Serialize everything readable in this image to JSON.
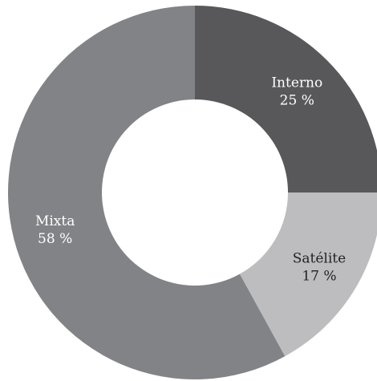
{
  "chart_data": {
    "type": "pie",
    "donut": true,
    "slices": [
      {
        "label": "Interno",
        "value": 25,
        "value_label": "25 %",
        "color": "#58585a",
        "label_color": "#ffffff"
      },
      {
        "label": "Satélite",
        "value": 17,
        "value_label": "17 %",
        "color": "#bdbdbf",
        "label_color": "#222222"
      },
      {
        "label": "Mixta",
        "value": 58,
        "value_label": "58 %",
        "color": "#828386",
        "label_color": "#ffffff"
      }
    ],
    "start_angle_deg": 0,
    "direction": "clockwise",
    "legend": "none"
  }
}
